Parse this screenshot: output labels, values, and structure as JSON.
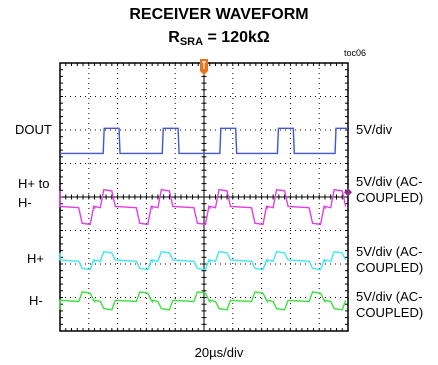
{
  "title_line1": "RECEIVER WAVEFORM",
  "title_rsra_main": "R",
  "title_rsra_sub": "SRA",
  "title_rsra_value": " = 120kΩ",
  "toc_label": "toc06",
  "x_axis_label": "20µs/div",
  "colors": {
    "frame": "#000000",
    "grid": "#000000",
    "trigger_marker": "#e8731a",
    "dout": "#4055e0",
    "hdiff": "#e040e0",
    "hplus": "#40e8f0",
    "hminus": "#40e040",
    "diff_marker": "#8a2a8a"
  },
  "chart_data": {
    "type": "line",
    "title": "RECEIVER WAVEFORM",
    "subtitle": "RSRA = 120kΩ",
    "x_div_label": "20µs/div",
    "x_divisions": 10,
    "y_divisions": 8,
    "series": [
      {
        "name": "DOUT",
        "scale": "5V/div",
        "left_label": "DOUT",
        "right_label": "5V/div",
        "color": "#4055e0",
        "ground_div": 5.3,
        "high_div": 6.05,
        "edges_div": [
          1.5,
          2.05,
          3.55,
          4.1,
          5.55,
          6.1,
          7.55,
          8.1,
          9.55
        ],
        "start_high": false
      },
      {
        "name": "H+ to H-",
        "scale": "5V/div (AC-COUPLED)",
        "left_label_line1": "H+ to",
        "left_label_line2": "H-",
        "right_label_line1": "5V/div (AC-",
        "right_label_line2": "COUPLED)",
        "color": "#e040e0",
        "levels_div": [
          3.2,
          3.7,
          4.2
        ]
      },
      {
        "name": "H+",
        "scale": "5V/div (AC-COUPLED)",
        "left_label": "H+",
        "right_label_line1": "5V/div (AC-",
        "right_label_line2": "COUPLED)",
        "color": "#40e8f0",
        "levels_div": [
          1.85,
          2.1,
          2.35
        ]
      },
      {
        "name": "H-",
        "scale": "5V/div (AC-COUPLED)",
        "left_label": "H-",
        "right_label_line1": "5V/div (AC-",
        "right_label_line2": "COUPLED)",
        "color": "#40e040",
        "levels_div": [
          0.65,
          0.9,
          1.15
        ]
      }
    ]
  }
}
